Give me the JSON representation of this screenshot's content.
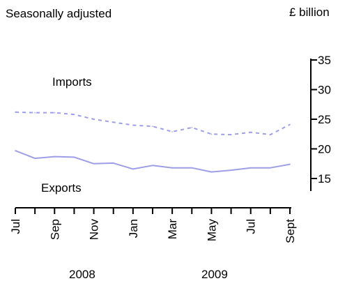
{
  "chart_data": {
    "type": "line",
    "subtitle": "Seasonally adjusted",
    "unit_label": "£ billion",
    "categories": [
      "Jul 2008",
      "Aug 2008",
      "Sep 2008",
      "Oct 2008",
      "Nov 2008",
      "Dec 2008",
      "Jan 2009",
      "Feb 2009",
      "Mar 2009",
      "Apr 2009",
      "May 2009",
      "Jun 2009",
      "Jul 2009",
      "Aug 2009",
      "Sep 2009"
    ],
    "tick_labels": [
      "Jul",
      "Sep",
      "Nov",
      "Jan",
      "Mar",
      "May",
      "Jul",
      "Sept"
    ],
    "year_labels": [
      "2008",
      "2009"
    ],
    "series": [
      {
        "name": "Imports",
        "style": "dashed",
        "color": "#9e9ee8",
        "values": [
          26.2,
          26.1,
          26.1,
          25.8,
          25.0,
          24.5,
          24.0,
          23.8,
          22.9,
          23.6,
          22.5,
          22.4,
          22.8,
          22.4,
          24.1
        ]
      },
      {
        "name": "Exports",
        "style": "solid",
        "color": "#9e9ee8",
        "values": [
          19.7,
          18.4,
          18.7,
          18.6,
          17.5,
          17.6,
          16.6,
          17.2,
          16.8,
          16.8,
          16.1,
          16.4,
          16.8,
          16.8,
          17.4
        ]
      }
    ],
    "ylim": [
      13,
      35
    ],
    "yticks": [
      15,
      20,
      25,
      30,
      35
    ],
    "y_axis_position": "right",
    "grid": false,
    "legend": "inline-labels"
  }
}
